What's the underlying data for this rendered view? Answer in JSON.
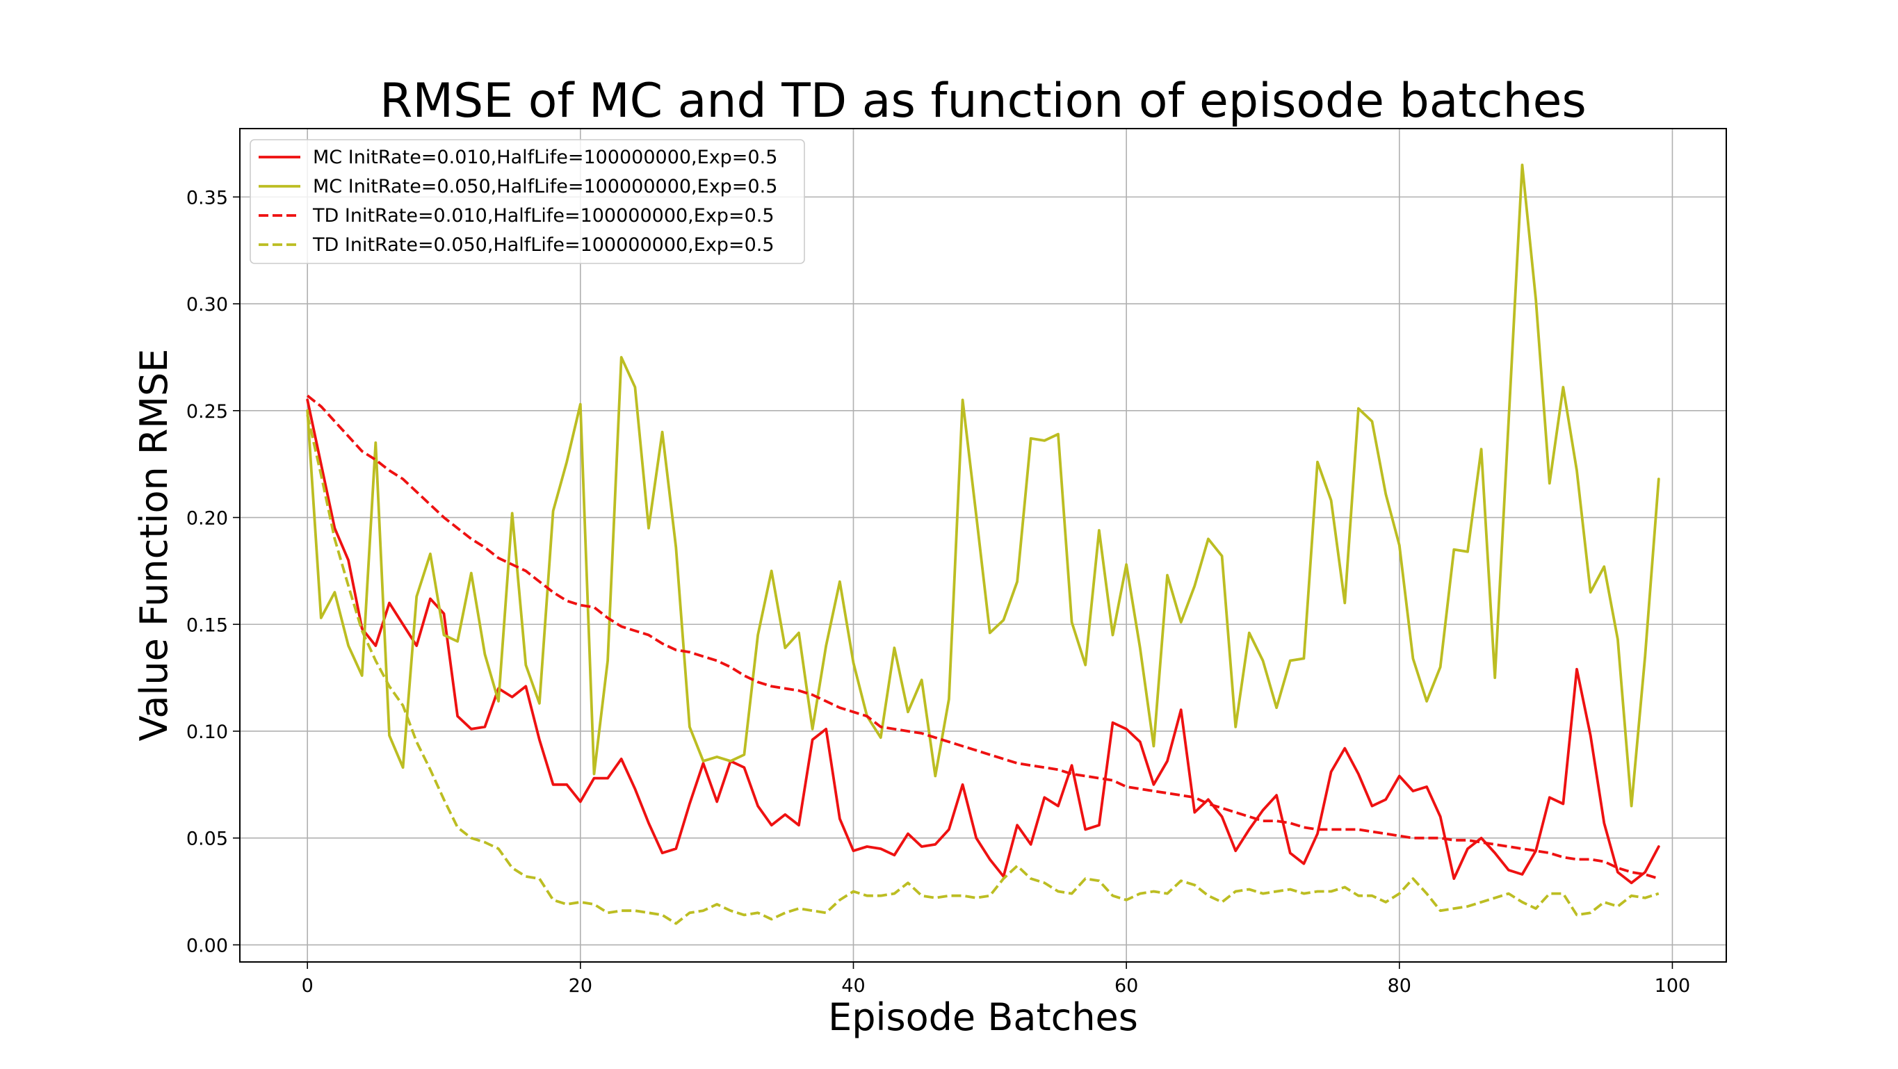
{
  "chart_data": {
    "type": "line",
    "title": "RMSE of MC and TD as function of episode batches",
    "xlabel": "Episode Batches",
    "ylabel": "Value Function RMSE",
    "xlim": [
      -4.95,
      103.95
    ],
    "ylim": [
      -0.008,
      0.382
    ],
    "xticks": [
      0,
      20,
      40,
      60,
      80,
      100
    ],
    "yticks": [
      0.0,
      0.05,
      0.1,
      0.15,
      0.2,
      0.25,
      0.3,
      0.35
    ],
    "grid": true,
    "legend_position": "top-left",
    "x": [
      0,
      1,
      2,
      3,
      4,
      5,
      6,
      7,
      8,
      9,
      10,
      11,
      12,
      13,
      14,
      15,
      16,
      17,
      18,
      19,
      20,
      21,
      22,
      23,
      24,
      25,
      26,
      27,
      28,
      29,
      30,
      31,
      32,
      33,
      34,
      35,
      36,
      37,
      38,
      39,
      40,
      41,
      42,
      43,
      44,
      45,
      46,
      47,
      48,
      49,
      50,
      51,
      52,
      53,
      54,
      55,
      56,
      57,
      58,
      59,
      60,
      61,
      62,
      63,
      64,
      65,
      66,
      67,
      68,
      69,
      70,
      71,
      72,
      73,
      74,
      75,
      76,
      77,
      78,
      79,
      80,
      81,
      82,
      83,
      84,
      85,
      86,
      87,
      88,
      89,
      90,
      91,
      92,
      93,
      94,
      95,
      96,
      97,
      98,
      99
    ],
    "series": [
      {
        "name": "MC InitRate=0.010,HalfLife=100000000,Exp=0.5",
        "color": "#ee1111",
        "dash": "solid",
        "values": [
          0.255,
          0.225,
          0.195,
          0.18,
          0.148,
          0.14,
          0.16,
          0.15,
          0.14,
          0.162,
          0.155,
          0.107,
          0.101,
          0.102,
          0.12,
          0.116,
          0.121,
          0.096,
          0.075,
          0.075,
          0.067,
          0.078,
          0.078,
          0.087,
          0.073,
          0.057,
          0.043,
          0.045,
          0.066,
          0.085,
          0.067,
          0.086,
          0.083,
          0.065,
          0.056,
          0.061,
          0.056,
          0.096,
          0.101,
          0.059,
          0.044,
          0.046,
          0.045,
          0.042,
          0.052,
          0.046,
          0.047,
          0.054,
          0.075,
          0.05,
          0.04,
          0.032,
          0.056,
          0.047,
          0.069,
          0.065,
          0.084,
          0.054,
          0.056,
          0.104,
          0.101,
          0.095,
          0.075,
          0.086,
          0.11,
          0.062,
          0.068,
          0.06,
          0.044,
          0.054,
          0.063,
          0.07,
          0.043,
          0.038,
          0.052,
          0.081,
          0.092,
          0.08,
          0.065,
          0.068,
          0.079,
          0.072,
          0.074,
          0.06,
          0.031,
          0.045,
          0.05,
          0.043,
          0.035,
          0.033,
          0.044,
          0.069,
          0.066,
          0.129,
          0.098,
          0.057,
          0.034,
          0.029,
          0.034,
          0.046
        ]
      },
      {
        "name": "MC InitRate=0.050,HalfLife=100000000,Exp=0.5",
        "color": "#bcbd22",
        "dash": "solid",
        "values": [
          0.25,
          0.153,
          0.165,
          0.14,
          0.126,
          0.235,
          0.098,
          0.083,
          0.163,
          0.183,
          0.145,
          0.142,
          0.174,
          0.136,
          0.114,
          0.202,
          0.131,
          0.113,
          0.203,
          0.226,
          0.253,
          0.08,
          0.133,
          0.275,
          0.261,
          0.195,
          0.24,
          0.186,
          0.102,
          0.086,
          0.088,
          0.086,
          0.089,
          0.145,
          0.175,
          0.139,
          0.146,
          0.101,
          0.14,
          0.17,
          0.132,
          0.107,
          0.097,
          0.139,
          0.109,
          0.124,
          0.079,
          0.115,
          0.255,
          0.201,
          0.146,
          0.152,
          0.17,
          0.237,
          0.236,
          0.239,
          0.151,
          0.131,
          0.194,
          0.145,
          0.178,
          0.139,
          0.093,
          0.173,
          0.151,
          0.168,
          0.19,
          0.182,
          0.102,
          0.146,
          0.133,
          0.111,
          0.133,
          0.134,
          0.226,
          0.208,
          0.16,
          0.251,
          0.245,
          0.211,
          0.187,
          0.134,
          0.114,
          0.13,
          0.185,
          0.184,
          0.232,
          0.125,
          0.245,
          0.365,
          0.302,
          0.216,
          0.261,
          0.222,
          0.165,
          0.177,
          0.143,
          0.065,
          0.135,
          0.218
        ]
      },
      {
        "name": "TD InitRate=0.010,HalfLife=100000000,Exp=0.5",
        "color": "#ee1111",
        "dash": "dashed",
        "values": [
          0.257,
          0.252,
          0.245,
          0.238,
          0.231,
          0.227,
          0.222,
          0.218,
          0.212,
          0.206,
          0.2,
          0.195,
          0.19,
          0.186,
          0.181,
          0.178,
          0.175,
          0.17,
          0.165,
          0.161,
          0.159,
          0.158,
          0.153,
          0.149,
          0.147,
          0.145,
          0.141,
          0.138,
          0.137,
          0.135,
          0.133,
          0.13,
          0.126,
          0.123,
          0.121,
          0.12,
          0.119,
          0.117,
          0.114,
          0.111,
          0.109,
          0.107,
          0.102,
          0.101,
          0.1,
          0.099,
          0.097,
          0.095,
          0.093,
          0.091,
          0.089,
          0.087,
          0.085,
          0.084,
          0.083,
          0.082,
          0.08,
          0.079,
          0.078,
          0.077,
          0.074,
          0.073,
          0.072,
          0.071,
          0.07,
          0.069,
          0.066,
          0.064,
          0.062,
          0.06,
          0.058,
          0.058,
          0.057,
          0.055,
          0.054,
          0.054,
          0.054,
          0.054,
          0.053,
          0.052,
          0.051,
          0.05,
          0.05,
          0.05,
          0.049,
          0.049,
          0.048,
          0.047,
          0.046,
          0.045,
          0.044,
          0.043,
          0.041,
          0.04,
          0.04,
          0.039,
          0.036,
          0.034,
          0.033,
          0.031
        ]
      },
      {
        "name": "TD InitRate=0.050,HalfLife=100000000,Exp=0.5",
        "color": "#bcbd22",
        "dash": "dashed",
        "values": [
          0.248,
          0.22,
          0.19,
          0.168,
          0.147,
          0.133,
          0.121,
          0.112,
          0.095,
          0.082,
          0.068,
          0.055,
          0.05,
          0.048,
          0.045,
          0.036,
          0.032,
          0.031,
          0.021,
          0.019,
          0.02,
          0.019,
          0.015,
          0.016,
          0.016,
          0.015,
          0.014,
          0.01,
          0.015,
          0.016,
          0.019,
          0.016,
          0.014,
          0.015,
          0.012,
          0.015,
          0.017,
          0.016,
          0.015,
          0.021,
          0.025,
          0.023,
          0.023,
          0.024,
          0.029,
          0.023,
          0.022,
          0.023,
          0.023,
          0.022,
          0.023,
          0.031,
          0.037,
          0.031,
          0.029,
          0.025,
          0.024,
          0.031,
          0.03,
          0.023,
          0.021,
          0.024,
          0.025,
          0.024,
          0.03,
          0.028,
          0.023,
          0.02,
          0.025,
          0.026,
          0.024,
          0.025,
          0.026,
          0.024,
          0.025,
          0.025,
          0.027,
          0.023,
          0.023,
          0.02,
          0.024,
          0.031,
          0.024,
          0.016,
          0.017,
          0.018,
          0.02,
          0.022,
          0.024,
          0.02,
          0.017,
          0.024,
          0.024,
          0.014,
          0.015,
          0.02,
          0.018,
          0.023,
          0.022,
          0.024
        ]
      }
    ]
  }
}
